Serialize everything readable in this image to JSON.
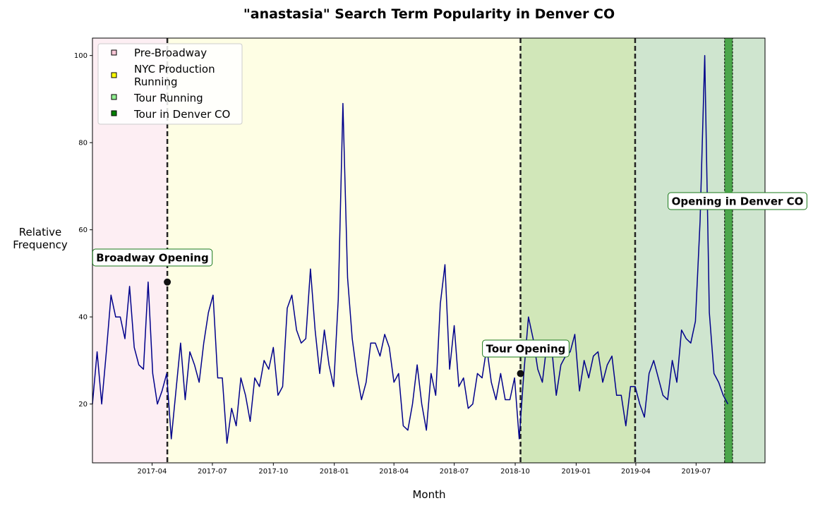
{
  "chart_data": {
    "type": "line",
    "title": "\"anastasia\" Search Term Popularity in Denver CO",
    "xlabel": "Month",
    "ylabel": "Relative\nFrequency",
    "xlim": [
      "2017-01-01",
      "2019-10-13"
    ],
    "ylim": [
      6.5,
      104
    ],
    "x_ticks": [
      "2017-04",
      "2017-07",
      "2017-10",
      "2018-01",
      "2018-04",
      "2018-07",
      "2018-10",
      "2019-01",
      "2019-04",
      "2019-07"
    ],
    "y_ticks": [
      20,
      40,
      60,
      80,
      100
    ],
    "grid": false,
    "legend_position": "top-left",
    "line_color": "#00008b",
    "series": [
      {
        "start_date": "2017-01-01",
        "interval_days": 7,
        "values": [
          20,
          32,
          20,
          32,
          45,
          40,
          40,
          35,
          47,
          33,
          29,
          28,
          48,
          27,
          20,
          23,
          27,
          12,
          23,
          34,
          21,
          32,
          29,
          25,
          34,
          41,
          45,
          26,
          26,
          11,
          19,
          15,
          26,
          22,
          16,
          26,
          24,
          30,
          28,
          33,
          22,
          24,
          42,
          45,
          37,
          34,
          35,
          51,
          37,
          27,
          37,
          29,
          24,
          44,
          89,
          49,
          35,
          27,
          21,
          25,
          34,
          34,
          31,
          36,
          33,
          25,
          27,
          15,
          14,
          20,
          29,
          20,
          14,
          27,
          22,
          43,
          52,
          28,
          38,
          24,
          26,
          19,
          20,
          27,
          26,
          33,
          25,
          21,
          27,
          21,
          21,
          26,
          12,
          27,
          40,
          35,
          28,
          25,
          34,
          33,
          22,
          29,
          31,
          32,
          36,
          23,
          30,
          26,
          31,
          32,
          25,
          29,
          31,
          22,
          22,
          15,
          24,
          24,
          20,
          17,
          27,
          30,
          26,
          22,
          21,
          30,
          25,
          37,
          35,
          34,
          39,
          62,
          100,
          41,
          27,
          25,
          22,
          20
        ]
      }
    ],
    "regions": [
      {
        "label": "Pre-Broadway",
        "start": "2017-01-01",
        "end": "2017-04-24",
        "color": "#fdeef3",
        "legend_color": "#f9c6d6"
      },
      {
        "label": "NYC Production Running",
        "start": "2017-04-24",
        "end": "2018-10-09",
        "color": "#fefee4",
        "legend_color": "#ffff00"
      },
      {
        "label": "Tour Running",
        "start": "2018-10-09",
        "end": "2019-03-31",
        "color": "#d1e7b9",
        "legend_color": "#90ee90"
      },
      {
        "label": "Tour in Denver CO",
        "start": "2019-08-13",
        "end": "2019-08-25",
        "color": "#4ca64c",
        "legend_color": "#008000"
      }
    ],
    "post_region": {
      "start": "2019-03-31",
      "end": "2019-10-13",
      "color": "#cfe5cf"
    },
    "vlines": [
      "2017-04-24",
      "2018-10-09",
      "2019-03-31"
    ],
    "annotations": [
      {
        "text": "Broadway Opening",
        "date": "2017-04-24",
        "value": 48
      },
      {
        "text": "Tour Opening",
        "date": "2018-10-09",
        "value": 27
      },
      {
        "text": "Opening in Denver CO",
        "date": "2019-08-19",
        "value": null
      }
    ]
  }
}
